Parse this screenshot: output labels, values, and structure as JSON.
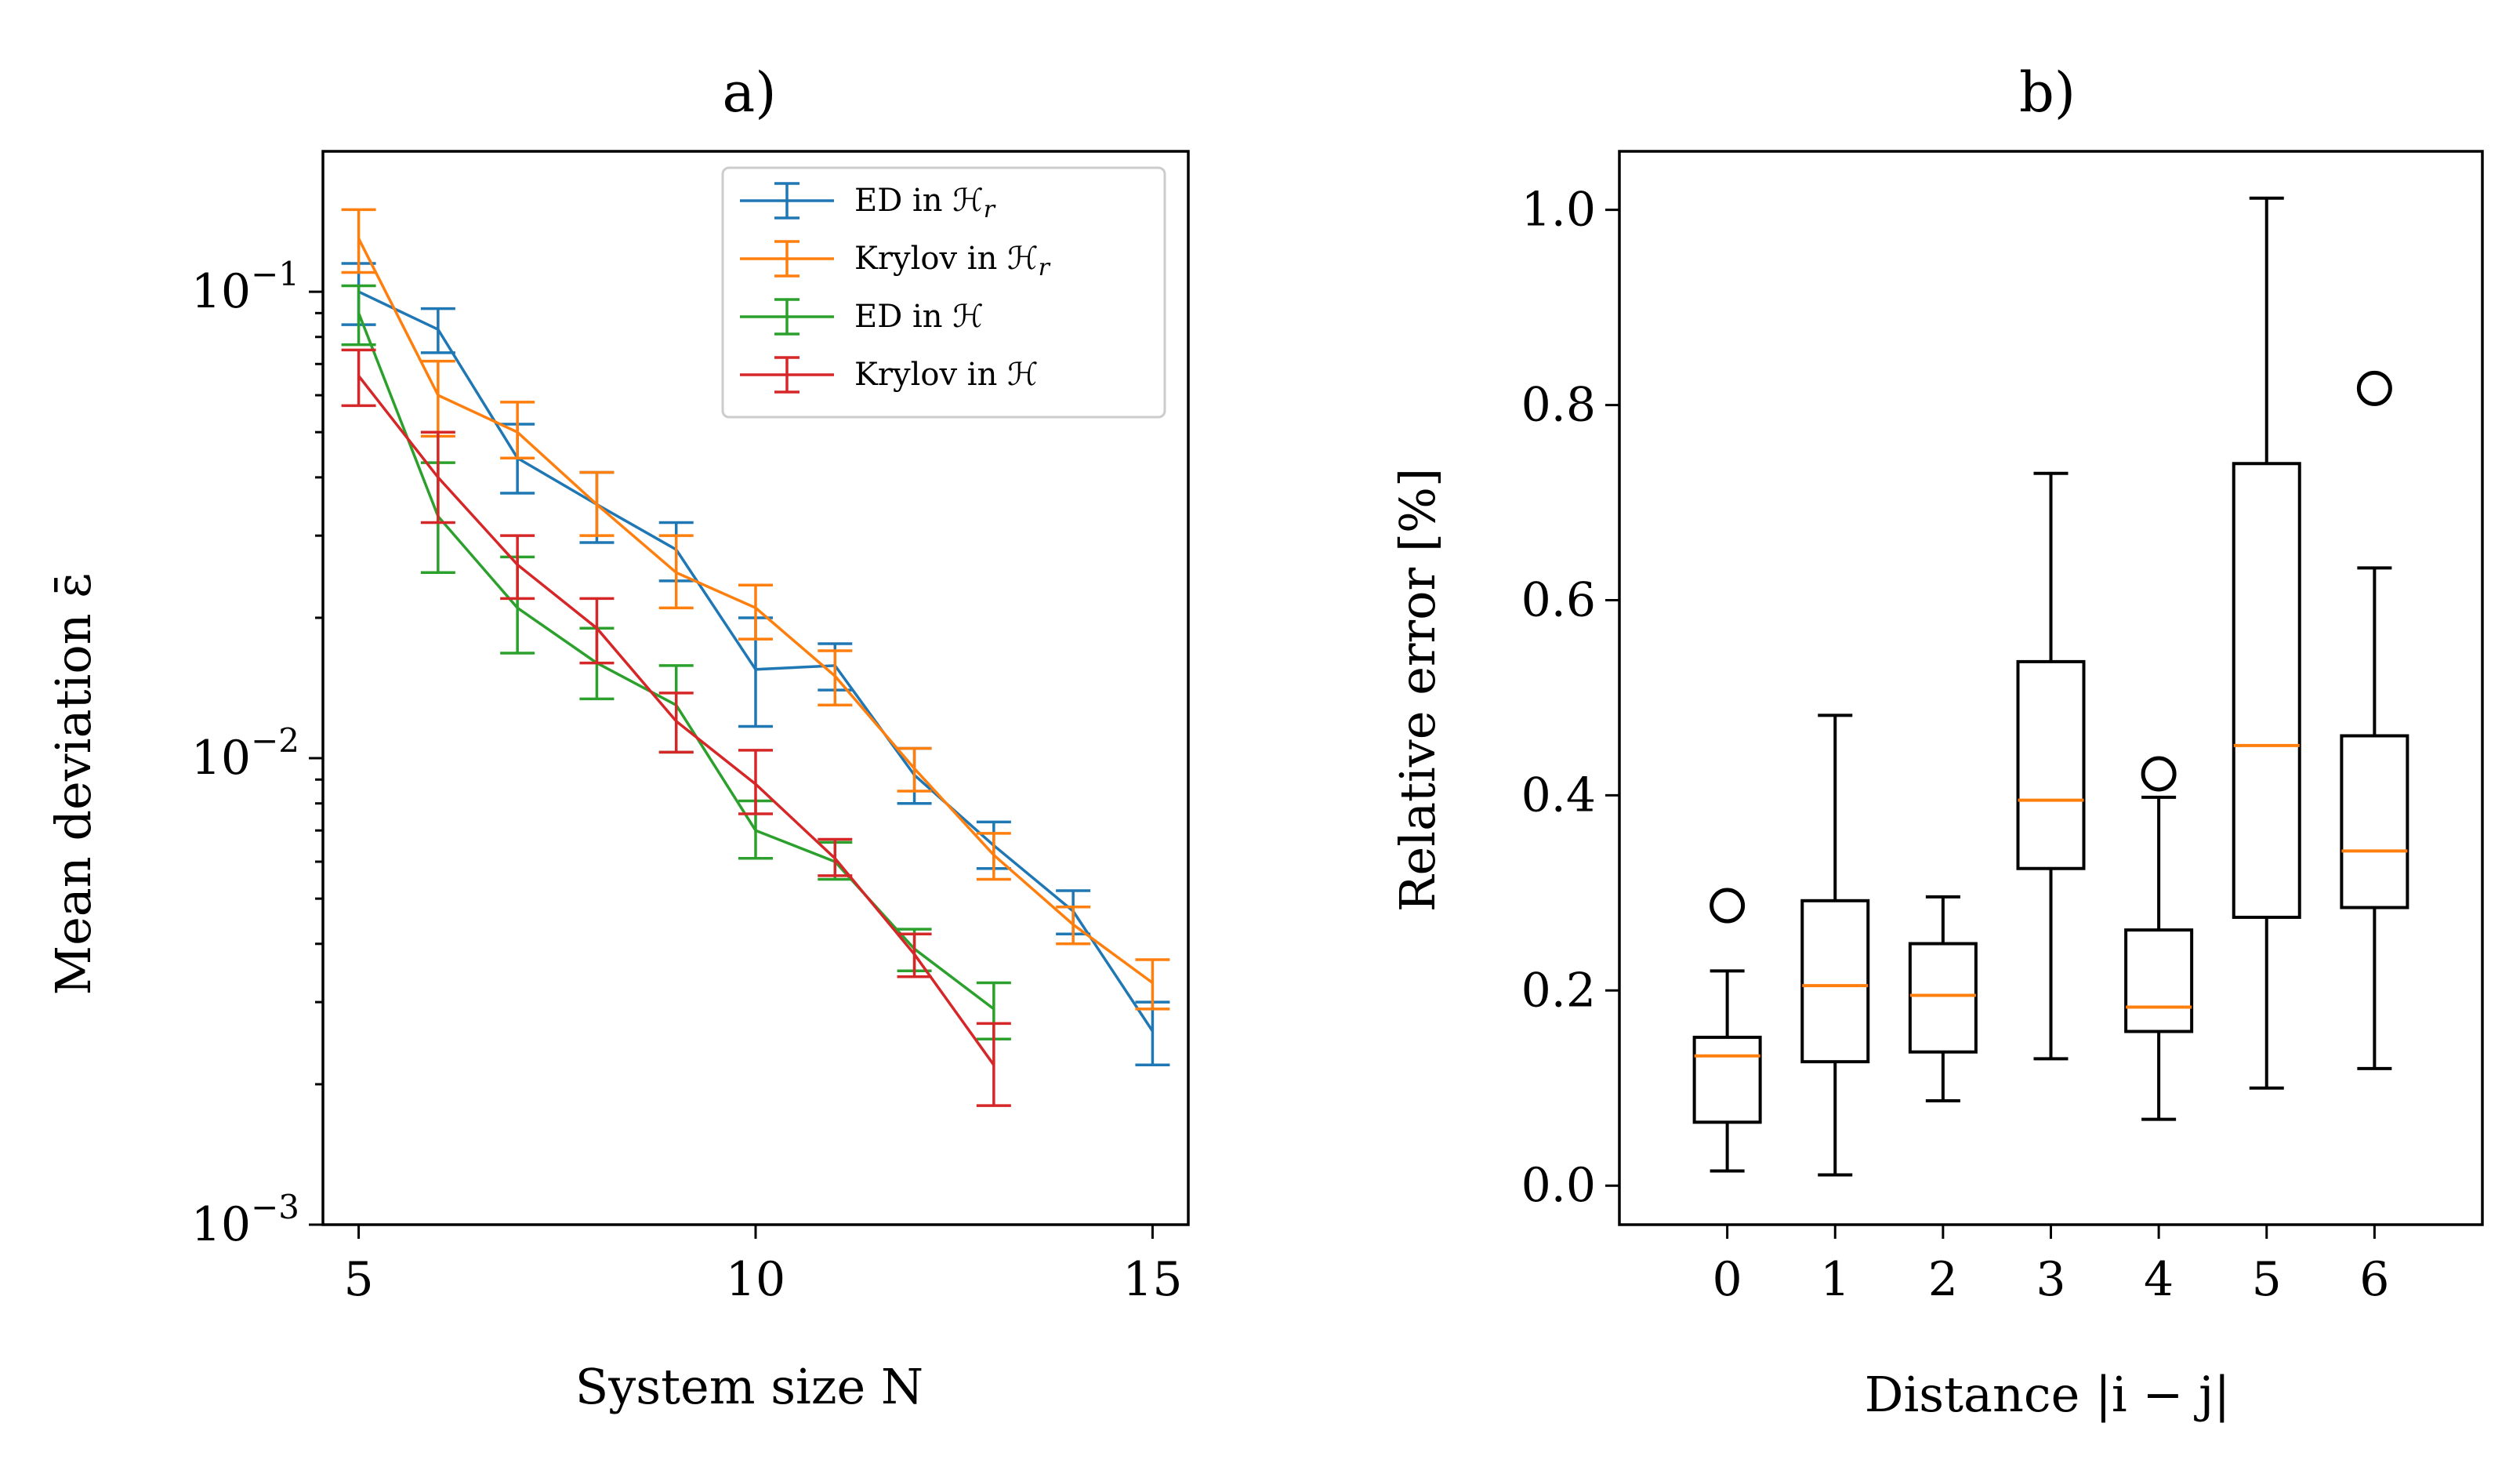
{
  "chart_data": [
    {
      "type": "line",
      "title": "a)",
      "xlabel": "System size N",
      "ylabel": "Mean deviation ε̄",
      "yscale": "log",
      "xlim": [
        4.55,
        15.45
      ],
      "ylim": [
        0.001,
        0.2
      ],
      "xticks": [
        5,
        10,
        15
      ],
      "yticks": [
        {
          "value": 0.1,
          "base": "10",
          "exp": "−1"
        },
        {
          "value": 0.01,
          "base": "10",
          "exp": "−2"
        },
        {
          "value": 0.001,
          "base": "10",
          "exp": "−3"
        }
      ],
      "legend_position": "top-right",
      "grid": false,
      "series": [
        {
          "name": "ED in ℋ",
          "name_sub": "r",
          "color": "#1f77b4",
          "x": [
            5,
            6,
            7,
            8,
            9,
            10,
            11,
            12,
            13,
            14,
            15
          ],
          "y": [
            0.1,
            0.083,
            0.044,
            0.035,
            0.028,
            0.0155,
            0.0158,
            0.0092,
            0.0065,
            0.0047,
            0.0026
          ],
          "err_low": [
            0.085,
            0.074,
            0.037,
            0.029,
            0.024,
            0.0117,
            0.014,
            0.008,
            0.0058,
            0.0042,
            0.0022
          ],
          "err_high": [
            0.115,
            0.092,
            0.052,
            0.041,
            0.032,
            0.02,
            0.0176,
            0.0105,
            0.0073,
            0.0052,
            0.003
          ]
        },
        {
          "name": "Krylov in ℋ",
          "name_sub": "r",
          "color": "#ff7f0e",
          "x": [
            5,
            6,
            7,
            8,
            9,
            10,
            11,
            12,
            13,
            14,
            15
          ],
          "y": [
            0.13,
            0.06,
            0.05,
            0.035,
            0.025,
            0.021,
            0.015,
            0.0095,
            0.0062,
            0.0044,
            0.0033
          ],
          "err_low": [
            0.11,
            0.049,
            0.044,
            0.03,
            0.021,
            0.018,
            0.013,
            0.0085,
            0.0055,
            0.004,
            0.0029
          ],
          "err_high": [
            0.15,
            0.071,
            0.058,
            0.041,
            0.03,
            0.0235,
            0.017,
            0.0105,
            0.0069,
            0.0048,
            0.0037
          ]
        },
        {
          "name": "ED in ℋ",
          "name_sub": "",
          "color": "#2ca02c",
          "x": [
            5,
            6,
            7,
            8,
            9,
            10,
            11,
            12,
            13
          ],
          "y": [
            0.09,
            0.033,
            0.021,
            0.016,
            0.013,
            0.007,
            0.006,
            0.0039,
            0.0029
          ],
          "err_low": [
            0.077,
            0.025,
            0.0168,
            0.0134,
            0.0103,
            0.0061,
            0.0055,
            0.0035,
            0.0025
          ],
          "err_high": [
            0.103,
            0.043,
            0.027,
            0.019,
            0.0158,
            0.0081,
            0.0066,
            0.0043,
            0.0033
          ]
        },
        {
          "name": "Krylov in ℋ",
          "name_sub": "",
          "color": "#d62728",
          "x": [
            5,
            6,
            7,
            8,
            9,
            10,
            11,
            12,
            13
          ],
          "y": [
            0.066,
            0.04,
            0.026,
            0.019,
            0.012,
            0.0088,
            0.0061,
            0.0038,
            0.0022
          ],
          "err_low": [
            0.057,
            0.032,
            0.022,
            0.016,
            0.0103,
            0.0076,
            0.0056,
            0.0034,
            0.0018
          ],
          "err_high": [
            0.075,
            0.05,
            0.03,
            0.022,
            0.0138,
            0.0104,
            0.0067,
            0.0042,
            0.0027
          ]
        }
      ]
    },
    {
      "type": "box",
      "title": "b)",
      "xlabel": "Distance |i − j|",
      "ylabel": "Relative error [%]",
      "ylim": [
        -0.04,
        1.06
      ],
      "yticks": [
        "0.0",
        "0.2",
        "0.4",
        "0.6",
        "0.8",
        "1.0"
      ],
      "grid": false,
      "box_color": "#000000",
      "median_color": "#ff7f0e",
      "categories": [
        "0",
        "1",
        "2",
        "3",
        "4",
        "5",
        "6"
      ],
      "boxes": [
        {
          "whisker_low": 0.015,
          "q1": 0.065,
          "median": 0.133,
          "q3": 0.152,
          "whisker_high": 0.22,
          "outliers": [
            0.287
          ]
        },
        {
          "whisker_low": 0.011,
          "q1": 0.127,
          "median": 0.205,
          "q3": 0.292,
          "whisker_high": 0.482,
          "outliers": []
        },
        {
          "whisker_low": 0.087,
          "q1": 0.137,
          "median": 0.195,
          "q3": 0.248,
          "whisker_high": 0.296,
          "outliers": []
        },
        {
          "whisker_low": 0.13,
          "q1": 0.325,
          "median": 0.395,
          "q3": 0.537,
          "whisker_high": 0.73,
          "outliers": []
        },
        {
          "whisker_low": 0.068,
          "q1": 0.158,
          "median": 0.183,
          "q3": 0.262,
          "whisker_high": 0.398,
          "outliers": [
            0.422
          ]
        },
        {
          "whisker_low": 0.1,
          "q1": 0.275,
          "median": 0.451,
          "q3": 0.74,
          "whisker_high": 1.012,
          "outliers": []
        },
        {
          "whisker_low": 0.12,
          "q1": 0.285,
          "median": 0.343,
          "q3": 0.461,
          "whisker_high": 0.633,
          "outliers": [
            0.817
          ]
        }
      ]
    }
  ]
}
